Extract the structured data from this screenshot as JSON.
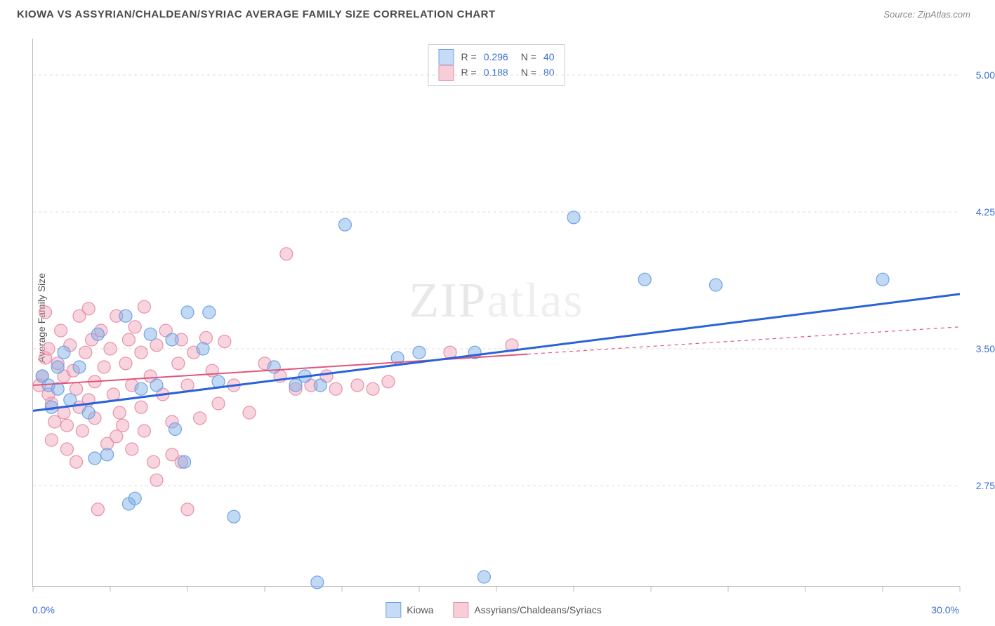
{
  "header": {
    "title": "KIOWA VS ASSYRIAN/CHALDEAN/SYRIAC AVERAGE FAMILY SIZE CORRELATION CHART",
    "source_prefix": "Source: ",
    "source": "ZipAtlas.com"
  },
  "chart": {
    "type": "scatter",
    "watermark": "ZIPatlas",
    "ylabel": "Average Family Size",
    "xlim": [
      0,
      30
    ],
    "ylim": [
      2.2,
      5.2
    ],
    "xticks_pct": [
      0,
      2.5,
      5,
      7.5,
      10,
      12.5,
      15,
      17.5,
      20,
      22.5,
      25,
      27.5,
      30
    ],
    "x_axis_label_min": "0.0%",
    "x_axis_label_max": "30.0%",
    "yticks": [
      2.75,
      3.5,
      4.25,
      5.0
    ],
    "ytick_labels": [
      "2.75",
      "3.50",
      "4.25",
      "5.00"
    ],
    "background_color": "#ffffff",
    "grid_color": "#dddddd",
    "axis_color": "#bbbbbb",
    "text_color": "#555555",
    "value_color": "#3b6fd6"
  },
  "legend_top": {
    "rows": [
      {
        "swatch_fill": "#c6dbf5",
        "swatch_border": "#6fa3e8",
        "r_label": "R =",
        "r_value": "0.296",
        "n_label": "N =",
        "n_value": "40"
      },
      {
        "swatch_fill": "#f7cdd8",
        "swatch_border": "#e890a7",
        "r_label": "R =",
        "r_value": "0.188",
        "n_label": "N =",
        "n_value": "80"
      }
    ]
  },
  "legend_bottom": {
    "items": [
      {
        "swatch_fill": "#c6dbf5",
        "swatch_border": "#6fa3e8",
        "label": "Kiowa"
      },
      {
        "swatch_fill": "#f7cdd8",
        "swatch_border": "#e890a7",
        "label": "Assyrians/Chaldeans/Syriacs"
      }
    ]
  },
  "series": {
    "kiowa": {
      "color_fill": "rgba(120,170,230,0.45)",
      "color_stroke": "#6fa3e8",
      "marker_radius": 9,
      "points": [
        [
          0.3,
          3.35
        ],
        [
          0.5,
          3.3
        ],
        [
          0.8,
          3.28
        ],
        [
          1.0,
          3.48
        ],
        [
          1.5,
          3.4
        ],
        [
          1.2,
          3.22
        ],
        [
          2.4,
          2.92
        ],
        [
          2.1,
          3.58
        ],
        [
          3.0,
          3.68
        ],
        [
          3.5,
          3.28
        ],
        [
          3.8,
          3.58
        ],
        [
          4.0,
          3.3
        ],
        [
          4.5,
          3.55
        ],
        [
          5.0,
          3.7
        ],
        [
          5.5,
          3.5
        ],
        [
          5.7,
          3.7
        ],
        [
          3.3,
          2.68
        ],
        [
          3.1,
          2.65
        ],
        [
          4.9,
          2.88
        ],
        [
          6.5,
          2.58
        ],
        [
          4.6,
          3.06
        ],
        [
          6.0,
          3.32
        ],
        [
          7.8,
          3.4
        ],
        [
          8.5,
          3.3
        ],
        [
          8.8,
          3.35
        ],
        [
          9.3,
          3.3
        ],
        [
          9.2,
          2.22
        ],
        [
          10.1,
          4.18
        ],
        [
          11.8,
          3.45
        ],
        [
          12.5,
          3.48
        ],
        [
          14.3,
          3.48
        ],
        [
          14.6,
          2.25
        ],
        [
          17.5,
          4.22
        ],
        [
          19.8,
          3.88
        ],
        [
          22.1,
          3.85
        ],
        [
          27.5,
          3.88
        ],
        [
          1.8,
          3.15
        ],
        [
          0.6,
          3.18
        ],
        [
          2.0,
          2.9
        ],
        [
          0.8,
          3.4
        ]
      ],
      "trend": {
        "x1": 0,
        "y1": 3.16,
        "x2": 30,
        "y2": 3.8,
        "solid_to_x": 30,
        "color": "#2962d9",
        "width": 3
      }
    },
    "assyrians": {
      "color_fill": "rgba(240,160,185,0.45)",
      "color_stroke": "#e890a7",
      "marker_radius": 9,
      "points": [
        [
          0.2,
          3.3
        ],
        [
          0.3,
          3.35
        ],
        [
          0.4,
          3.45
        ],
        [
          0.5,
          3.5
        ],
        [
          0.5,
          3.25
        ],
        [
          0.6,
          3.2
        ],
        [
          0.7,
          3.1
        ],
        [
          0.8,
          3.42
        ],
        [
          0.9,
          3.6
        ],
        [
          1.0,
          3.35
        ],
        [
          1.0,
          3.15
        ],
        [
          1.1,
          3.08
        ],
        [
          1.2,
          3.52
        ],
        [
          1.3,
          3.38
        ],
        [
          1.4,
          3.28
        ],
        [
          1.5,
          3.68
        ],
        [
          1.5,
          3.18
        ],
        [
          1.6,
          3.05
        ],
        [
          1.7,
          3.48
        ],
        [
          1.8,
          3.72
        ],
        [
          1.8,
          3.22
        ],
        [
          1.9,
          3.55
        ],
        [
          2.0,
          3.32
        ],
        [
          2.0,
          3.12
        ],
        [
          2.1,
          2.62
        ],
        [
          2.2,
          3.6
        ],
        [
          2.3,
          3.4
        ],
        [
          2.4,
          2.98
        ],
        [
          2.5,
          3.5
        ],
        [
          2.6,
          3.25
        ],
        [
          2.7,
          3.68
        ],
        [
          2.8,
          3.15
        ],
        [
          2.9,
          3.08
        ],
        [
          3.0,
          3.42
        ],
        [
          3.1,
          3.55
        ],
        [
          3.2,
          3.3
        ],
        [
          3.2,
          2.95
        ],
        [
          3.3,
          3.62
        ],
        [
          3.5,
          3.48
        ],
        [
          3.5,
          3.18
        ],
        [
          3.6,
          3.05
        ],
        [
          3.8,
          3.35
        ],
        [
          3.9,
          2.88
        ],
        [
          4.0,
          3.52
        ],
        [
          4.0,
          2.78
        ],
        [
          4.2,
          3.25
        ],
        [
          4.3,
          3.6
        ],
        [
          4.5,
          3.1
        ],
        [
          4.5,
          2.92
        ],
        [
          4.7,
          3.42
        ],
        [
          4.8,
          3.55
        ],
        [
          5.0,
          2.62
        ],
        [
          5.0,
          3.3
        ],
        [
          5.2,
          3.48
        ],
        [
          5.4,
          3.12
        ],
        [
          4.8,
          2.88
        ],
        [
          5.6,
          3.56
        ],
        [
          5.8,
          3.38
        ],
        [
          6.0,
          3.2
        ],
        [
          6.2,
          3.54
        ],
        [
          6.5,
          3.3
        ],
        [
          7.0,
          3.15
        ],
        [
          7.5,
          3.42
        ],
        [
          8.0,
          3.35
        ],
        [
          8.2,
          4.02
        ],
        [
          8.5,
          3.28
        ],
        [
          9.0,
          3.3
        ],
        [
          9.5,
          3.35
        ],
        [
          9.8,
          3.28
        ],
        [
          10.5,
          3.3
        ],
        [
          11.0,
          3.28
        ],
        [
          11.5,
          3.32
        ],
        [
          13.5,
          3.48
        ],
        [
          15.5,
          3.52
        ],
        [
          0.4,
          3.7
        ],
        [
          0.6,
          3.0
        ],
        [
          1.1,
          2.95
        ],
        [
          3.6,
          3.73
        ],
        [
          1.4,
          2.88
        ],
        [
          2.7,
          3.02
        ]
      ],
      "trend": {
        "x1": 0,
        "y1": 3.3,
        "x2": 30,
        "y2": 3.62,
        "solid_to_x": 16,
        "color": "#e3547a",
        "width": 2
      }
    }
  }
}
